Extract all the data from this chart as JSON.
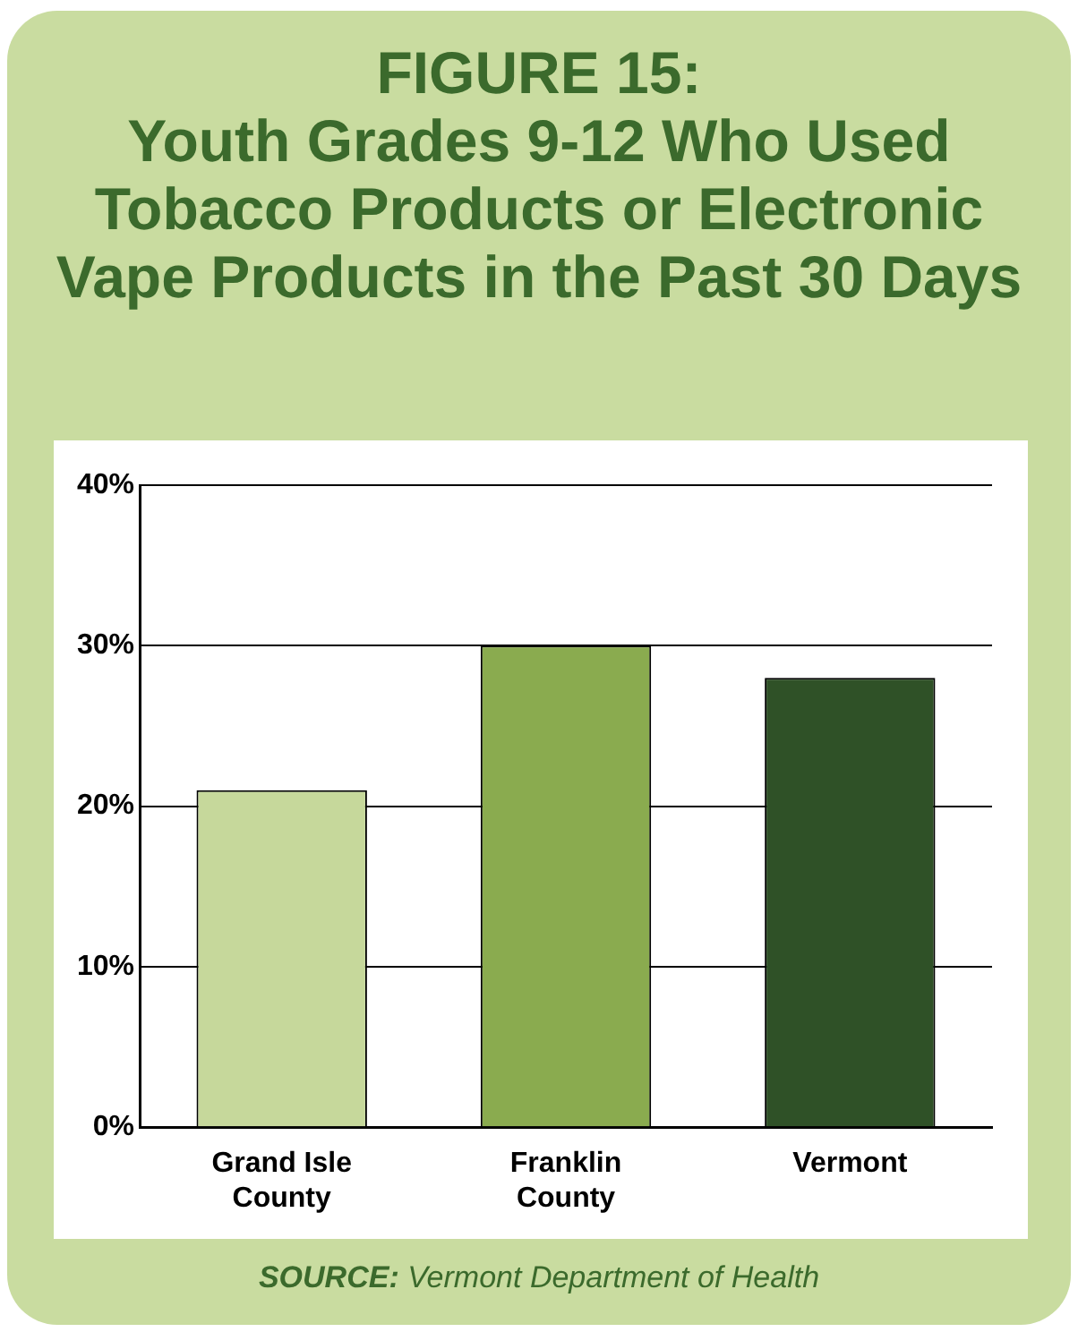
{
  "chart_data": {
    "type": "bar",
    "title": "FIGURE 15:\nYouth Grades 9-12 Who Used Tobacco Products or Electronic Vape Products in the Past 30 Days",
    "categories": [
      "Grand Isle County",
      "Franklin County",
      "Vermont"
    ],
    "values": [
      21,
      30,
      28
    ],
    "colors": [
      "#c6d89b",
      "#8aab4f",
      "#2f5127"
    ],
    "ylim": [
      0,
      40
    ],
    "yticks": [
      {
        "value": 0,
        "label": "0%"
      },
      {
        "value": 10,
        "label": "10%"
      },
      {
        "value": 20,
        "label": "20%"
      },
      {
        "value": 30,
        "label": "30%"
      },
      {
        "value": 40,
        "label": "40%"
      }
    ],
    "grid": "y",
    "legend": false,
    "annotations": [
      "SOURCE: Vermont Department of Health"
    ]
  }
}
